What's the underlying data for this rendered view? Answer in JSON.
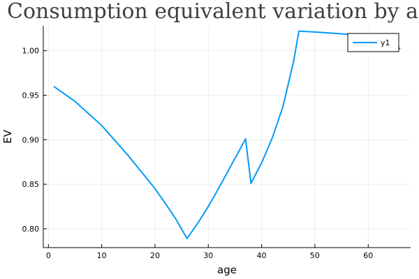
{
  "chart_data": {
    "type": "line",
    "title": "Consumption equivalent variation by age",
    "xlabel": "age",
    "ylabel": "EV",
    "xlim": [
      -0.96,
      67.96
    ],
    "ylim": [
      0.7788,
      1.028
    ],
    "xticks": [
      0,
      10,
      20,
      30,
      40,
      50,
      60
    ],
    "yticks": [
      0.8,
      0.85,
      0.9,
      0.95,
      1.0
    ],
    "ytick_labels": [
      "0.80",
      "0.85",
      "0.90",
      "0.95",
      "1.00"
    ],
    "grid": true,
    "legend_position": "top-right",
    "series": [
      {
        "name": "y1",
        "color": "#009af9",
        "x": [
          1,
          5,
          10,
          15,
          20,
          22,
          24,
          26,
          28,
          30,
          32,
          34,
          36,
          37,
          38,
          40,
          42,
          44,
          46,
          47,
          50,
          55,
          60,
          64,
          66
        ],
        "y": [
          0.96,
          0.943,
          0.916,
          0.882,
          0.845,
          0.828,
          0.81,
          0.789,
          0.806,
          0.825,
          0.846,
          0.868,
          0.89,
          0.901,
          0.851,
          0.874,
          0.902,
          0.937,
          0.988,
          1.022,
          1.021,
          1.019,
          1.016,
          1.011,
          1.002
        ]
      }
    ]
  }
}
